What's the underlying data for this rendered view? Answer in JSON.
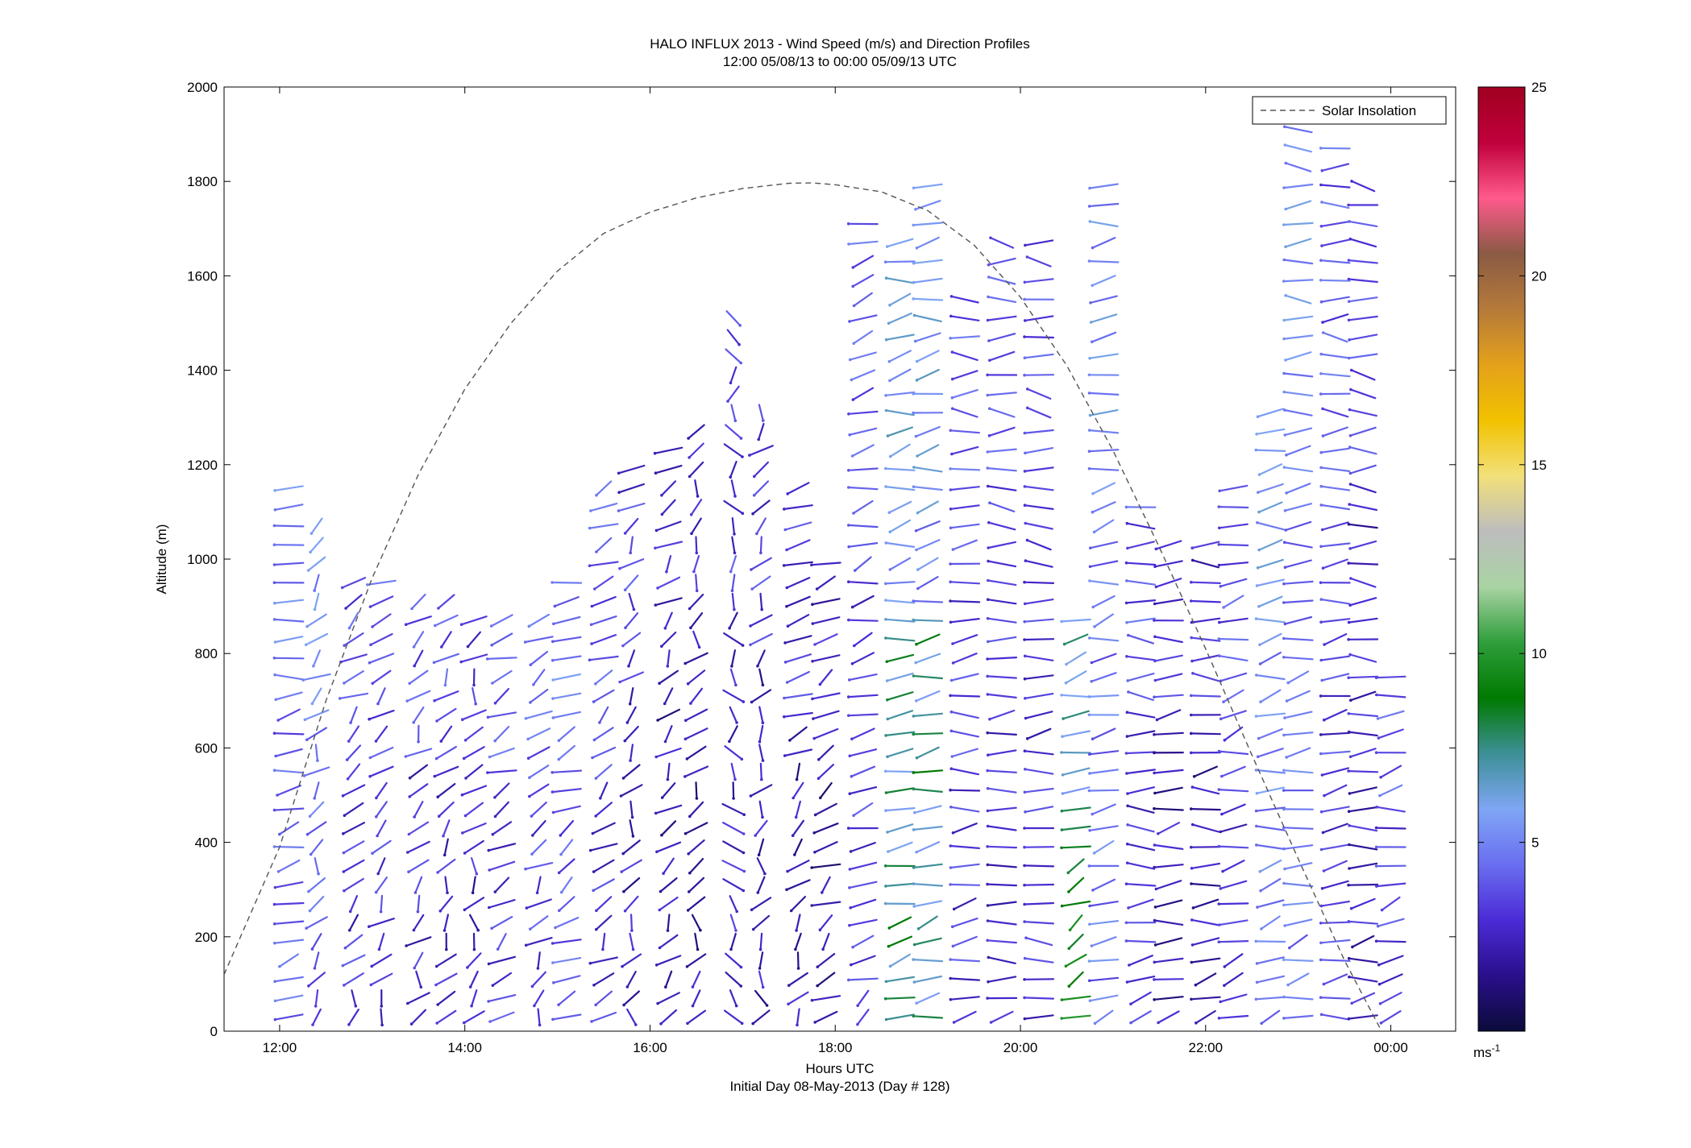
{
  "chart_data": {
    "type": "wind-barb profile (quiver)",
    "title": "HALO INFLUX 2013 - Wind Speed (m/s) and Direction Profiles",
    "subtitle": "12:00 05/08/13 to 00:00 05/09/13  UTC",
    "xlabel": "Hours UTC",
    "xlabel2": "Initial Day 08-May-2013 (Day # 128)",
    "ylabel": "Altitude (m)",
    "xlim": [
      11.4,
      24.7
    ],
    "ylim": [
      0,
      2000
    ],
    "x_ticks": [
      12,
      14,
      16,
      18,
      20,
      22,
      24
    ],
    "x_tick_labels": [
      "12:00",
      "14:00",
      "16:00",
      "18:00",
      "20:00",
      "22:00",
      "00:00"
    ],
    "y_ticks": [
      0,
      200,
      400,
      600,
      800,
      1000,
      1200,
      1400,
      1600,
      1800,
      2000
    ],
    "y_tick_labels": [
      "0",
      "200",
      "400",
      "600",
      "800",
      "1000",
      "1200",
      "1400",
      "1600",
      "1800",
      "2000"
    ],
    "legend": {
      "entries": [
        "Solar Insolation"
      ],
      "placement": "top-right"
    },
    "colorbar": {
      "range": [
        0,
        25
      ],
      "ticks": [
        5,
        10,
        15,
        20,
        25
      ],
      "tick_labels": [
        "5",
        "10",
        "15",
        "20",
        "25"
      ],
      "unit": "ms",
      "unit_exp": "-1",
      "colors": [
        "#0b0b3a",
        "#2a0f8c",
        "#4b2bd6",
        "#6a6ef0",
        "#7fa6f5",
        "#3d8f96",
        "#007a00",
        "#2f9e3c",
        "#a9d3a3",
        "#bdbdbd",
        "#f2e07a",
        "#f2c200",
        "#e4a11b",
        "#b57a3a",
        "#8a5a44",
        "#ff5a8c",
        "#c0003c",
        "#a00020"
      ]
    },
    "solar_insolation": {
      "style": "dashed",
      "color": "#555555",
      "points": [
        [
          11.4,
          120
        ],
        [
          12.0,
          390
        ],
        [
          12.5,
          700
        ],
        [
          13.0,
          960
        ],
        [
          13.5,
          1180
        ],
        [
          14.0,
          1360
        ],
        [
          14.5,
          1500
        ],
        [
          15.0,
          1610
        ],
        [
          15.5,
          1690
        ],
        [
          16.0,
          1735
        ],
        [
          16.5,
          1765
        ],
        [
          17.0,
          1785
        ],
        [
          17.5,
          1796
        ],
        [
          17.75,
          1797
        ],
        [
          18.0,
          1793
        ],
        [
          18.5,
          1778
        ],
        [
          19.0,
          1738
        ],
        [
          19.5,
          1665
        ],
        [
          20.0,
          1555
        ],
        [
          20.5,
          1410
        ],
        [
          21.0,
          1230
        ],
        [
          21.5,
          1025
        ],
        [
          22.0,
          810
        ],
        [
          22.5,
          585
        ],
        [
          23.0,
          365
        ],
        [
          23.5,
          150
        ],
        [
          23.9,
          0
        ]
      ]
    },
    "profiles": [
      {
        "time": 12.1,
        "top": 1150,
        "dir": 250,
        "speed": 4.0
      },
      {
        "time": 12.4,
        "top": 1090,
        "dir": 210,
        "speed": 4.2
      },
      {
        "time": 12.8,
        "top": 980,
        "dir": 215,
        "speed": 3.0
      },
      {
        "time": 13.1,
        "top": 960,
        "dir": 215,
        "speed": 3.0
      },
      {
        "time": 13.5,
        "top": 920,
        "dir": 210,
        "speed": 2.8
      },
      {
        "time": 13.8,
        "top": 930,
        "dir": 210,
        "speed": 2.8
      },
      {
        "time": 14.1,
        "top": 870,
        "dir": 200,
        "speed": 2.6
      },
      {
        "time": 14.4,
        "top": 880,
        "dir": 235,
        "speed": 3.2
      },
      {
        "time": 14.8,
        "top": 880,
        "dir": 220,
        "speed": 3.4
      },
      {
        "time": 15.1,
        "top": 960,
        "dir": 230,
        "speed": 4.0
      },
      {
        "time": 15.5,
        "top": 1160,
        "dir": 225,
        "speed": 3.2
      },
      {
        "time": 15.8,
        "top": 1200,
        "dir": 200,
        "speed": 2.4
      },
      {
        "time": 16.2,
        "top": 1260,
        "dir": 210,
        "speed": 2.0
      },
      {
        "time": 16.5,
        "top": 1280,
        "dir": 200,
        "speed": 2.0
      },
      {
        "time": 16.9,
        "top": 1520,
        "dir": 170,
        "speed": 2.6
      },
      {
        "time": 17.2,
        "top": 1340,
        "dir": 195,
        "speed": 2.4
      },
      {
        "time": 17.6,
        "top": 1170,
        "dir": 220,
        "speed": 2.2
      },
      {
        "time": 17.9,
        "top": 1020,
        "dir": 230,
        "speed": 1.8
      },
      {
        "time": 18.3,
        "top": 1740,
        "dir": 245,
        "speed": 3.2
      },
      {
        "time": 18.7,
        "top": 1700,
        "dir": 250,
        "speed": 5.2
      },
      {
        "time": 19.0,
        "top": 1820,
        "dir": 255,
        "speed": 5.0
      },
      {
        "time": 19.4,
        "top": 1550,
        "dir": 260,
        "speed": 3.2
      },
      {
        "time": 19.8,
        "top": 1700,
        "dir": 265,
        "speed": 3.0
      },
      {
        "time": 20.2,
        "top": 1700,
        "dir": 270,
        "speed": 3.0
      },
      {
        "time": 20.6,
        "top": 900,
        "dir": 240,
        "speed": 6.0
      },
      {
        "time": 20.9,
        "top": 1800,
        "dir": 250,
        "speed": 4.5
      },
      {
        "time": 21.3,
        "top": 1140,
        "dir": 265,
        "speed": 3.0
      },
      {
        "time": 21.6,
        "top": 1050,
        "dir": 260,
        "speed": 2.2
      },
      {
        "time": 22.0,
        "top": 1060,
        "dir": 265,
        "speed": 2.0
      },
      {
        "time": 22.3,
        "top": 1150,
        "dir": 250,
        "speed": 3.0
      },
      {
        "time": 22.7,
        "top": 1340,
        "dir": 255,
        "speed": 4.8
      },
      {
        "time": 23.0,
        "top": 1920,
        "dir": 260,
        "speed": 4.6
      },
      {
        "time": 23.4,
        "top": 1870,
        "dir": 265,
        "speed": 3.2
      },
      {
        "time": 23.7,
        "top": 1800,
        "dir": 270,
        "speed": 2.5
      },
      {
        "time": 24.0,
        "top": 760,
        "dir": 250,
        "speed": 3.5
      }
    ]
  }
}
